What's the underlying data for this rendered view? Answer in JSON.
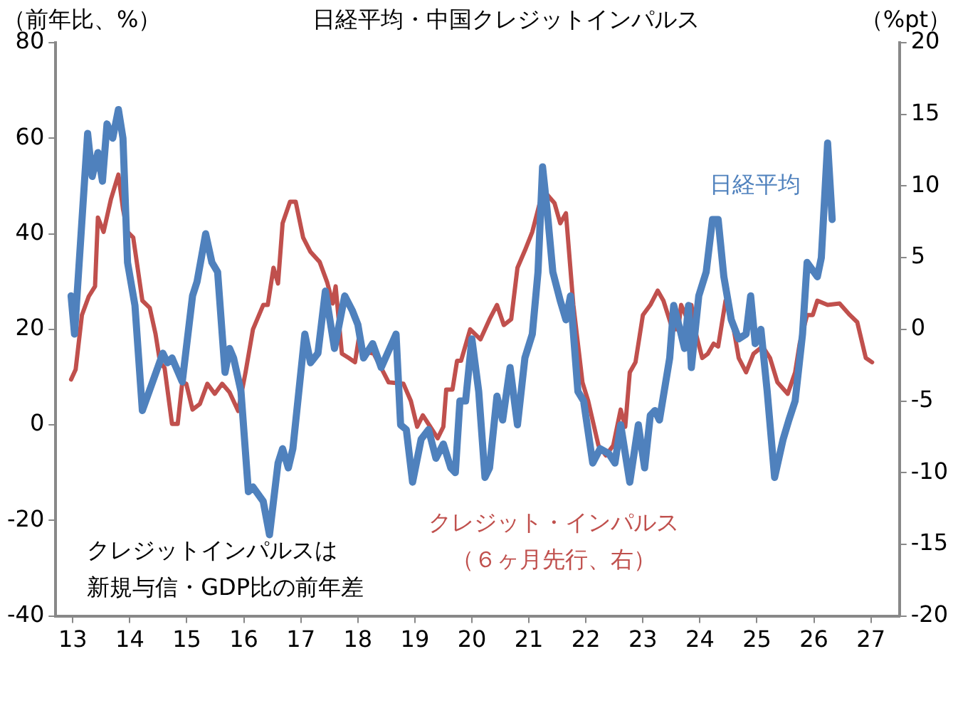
{
  "chart_data": {
    "type": "line",
    "title": "日経平均・中国クレジットインパルス",
    "ylabel": "（前年比、%）",
    "y2label": "（%pt）",
    "annotations": [
      "クレジットインパルスは",
      "新規与信・GDP比の前年差"
    ],
    "xlim": [
      2012.7,
      2027.5
    ],
    "xticks": [
      {
        "value": 2013,
        "label": "13"
      },
      {
        "value": 2014,
        "label": "14"
      },
      {
        "value": 2015,
        "label": "15"
      },
      {
        "value": 2016,
        "label": "16"
      },
      {
        "value": 2017,
        "label": "17"
      },
      {
        "value": 2018,
        "label": "18"
      },
      {
        "value": 2019,
        "label": "19"
      },
      {
        "value": 2020,
        "label": "20"
      },
      {
        "value": 2021,
        "label": "21"
      },
      {
        "value": 2022,
        "label": "22"
      },
      {
        "value": 2023,
        "label": "23"
      },
      {
        "value": 2024,
        "label": "24"
      },
      {
        "value": 2025,
        "label": "25"
      },
      {
        "value": 2026,
        "label": "26"
      },
      {
        "value": 2027,
        "label": "27"
      }
    ],
    "ylim": [
      -40,
      80
    ],
    "yticks": [
      -40,
      -20,
      0,
      20,
      40,
      60,
      80
    ],
    "y2lim": [
      -20,
      20
    ],
    "y2ticks": [
      -20,
      -15,
      -10,
      -5,
      0,
      5,
      10,
      15,
      20
    ],
    "grid": false,
    "legend": false,
    "marker": "none",
    "line_style": "solid",
    "series": [
      {
        "name": "日経平均",
        "color": "#4f81bd",
        "axis": "y",
        "x": [
          2012.97,
          2013.03,
          2013.26,
          2013.34,
          2013.44,
          2013.52,
          2013.6,
          2013.7,
          2013.8,
          2013.88,
          2013.96,
          2014.09,
          2014.22,
          2014.4,
          2014.58,
          2014.66,
          2014.74,
          2014.92,
          2015.1,
          2015.18,
          2015.33,
          2015.44,
          2015.54,
          2015.67,
          2015.75,
          2015.82,
          2015.95,
          2016.08,
          2016.16,
          2016.34,
          2016.45,
          2016.6,
          2016.68,
          2016.78,
          2016.86,
          2017.07,
          2017.17,
          2017.3,
          2017.43,
          2017.59,
          2017.77,
          2017.9,
          2018.0,
          2018.1,
          2018.26,
          2018.41,
          2018.67,
          2018.75,
          2018.85,
          2018.96,
          2019.11,
          2019.24,
          2019.37,
          2019.5,
          2019.63,
          2019.71,
          2019.79,
          2019.89,
          2020.0,
          2020.12,
          2020.23,
          2020.31,
          2020.44,
          2020.54,
          2020.67,
          2020.8,
          2020.93,
          2021.06,
          2021.16,
          2021.24,
          2021.32,
          2021.42,
          2021.55,
          2021.65,
          2021.73,
          2021.86,
          2021.96,
          2022.12,
          2022.25,
          2022.4,
          2022.51,
          2022.61,
          2022.77,
          2022.92,
          2023.03,
          2023.13,
          2023.21,
          2023.29,
          2023.47,
          2023.54,
          2023.65,
          2023.73,
          2023.8,
          2023.85,
          2023.98,
          2024.11,
          2024.22,
          2024.32,
          2024.42,
          2024.55,
          2024.68,
          2024.81,
          2024.89,
          2024.97,
          2025.07,
          2025.18,
          2025.31,
          2025.46,
          2025.56,
          2025.67,
          2025.8,
          2025.88,
          2026.06,
          2026.13,
          2026.24,
          2026.32
        ],
        "values": [
          27,
          19,
          61,
          52,
          57,
          51,
          63,
          60,
          66,
          60,
          34,
          25,
          3,
          9,
          15,
          13,
          14,
          9,
          27,
          30,
          40,
          34,
          32,
          11,
          16,
          14,
          7,
          -14,
          -13,
          -16,
          -23,
          -8,
          -5,
          -9,
          -5,
          19,
          13,
          15,
          28,
          16,
          27,
          24,
          21,
          14,
          17,
          12,
          19,
          0,
          -1,
          -12,
          -3,
          -1,
          -7,
          -4,
          -9,
          -10,
          5,
          5,
          18,
          7,
          -11,
          -9,
          6,
          1,
          12,
          0,
          14,
          19,
          32,
          54,
          45,
          32,
          26,
          22,
          27,
          7,
          5,
          -8,
          -5,
          -6,
          -8,
          0,
          -12,
          0,
          -9,
          2,
          3,
          1,
          14,
          25,
          20,
          16,
          25,
          12,
          27,
          32,
          43,
          43,
          31,
          22,
          18,
          19,
          27,
          17,
          20,
          7,
          -11,
          -3,
          1,
          5,
          19,
          34,
          31,
          35,
          59,
          43
        ]
      },
      {
        "name": "クレジット・インパルス（６ヶ月先行、右）",
        "color": "#c0504d",
        "axis": "y2",
        "x": [
          2012.97,
          2013.05,
          2013.16,
          2013.28,
          2013.39,
          2013.44,
          2013.54,
          2013.67,
          2013.8,
          2013.88,
          2013.96,
          2014.06,
          2014.22,
          2014.35,
          2014.45,
          2014.53,
          2014.61,
          2014.74,
          2014.84,
          2014.92,
          2014.99,
          2015.1,
          2015.23,
          2015.36,
          2015.49,
          2015.62,
          2015.75,
          2015.9,
          2016.03,
          2016.16,
          2016.34,
          2016.42,
          2016.52,
          2016.6,
          2016.68,
          2016.81,
          2016.91,
          2017.04,
          2017.17,
          2017.33,
          2017.46,
          2017.56,
          2017.61,
          2017.72,
          2017.84,
          2017.95,
          2018.03,
          2018.1,
          2018.28,
          2018.41,
          2018.54,
          2018.8,
          2018.93,
          2019.04,
          2019.14,
          2019.27,
          2019.4,
          2019.5,
          2019.55,
          2019.66,
          2019.74,
          2019.81,
          2019.97,
          2020.15,
          2020.31,
          2020.44,
          2020.56,
          2020.69,
          2020.8,
          2020.93,
          2021.06,
          2021.19,
          2021.32,
          2021.45,
          2021.55,
          2021.65,
          2021.78,
          2021.94,
          2022.04,
          2022.22,
          2022.35,
          2022.48,
          2022.61,
          2022.69,
          2022.77,
          2022.87,
          2023.0,
          2023.13,
          2023.26,
          2023.36,
          2023.52,
          2023.62,
          2023.67,
          2023.78,
          2023.85,
          2023.93,
          2024.04,
          2024.14,
          2024.24,
          2024.32,
          2024.45,
          2024.55,
          2024.68,
          2024.81,
          2024.94,
          2025.1,
          2025.23,
          2025.36,
          2025.54,
          2025.67,
          2025.75,
          2025.88,
          2025.98,
          2026.06,
          2026.24,
          2026.45,
          2026.63,
          2026.76,
          2026.91,
          2027.02
        ],
        "values": [
          -3.5,
          -2.8,
          1,
          2.3,
          3,
          7.8,
          6.8,
          9.1,
          10.8,
          8.4,
          6.8,
          6.4,
          2,
          1.5,
          -0.3,
          -2.3,
          -2.7,
          -6.6,
          -6.6,
          -3.7,
          -3.8,
          -5.6,
          -5.2,
          -3.8,
          -4.5,
          -3.8,
          -4.4,
          -5.7,
          -3,
          0,
          1.7,
          1.7,
          4.3,
          3.2,
          7.4,
          8.9,
          8.9,
          6.4,
          5.4,
          4.7,
          3.3,
          1.8,
          3,
          -1.7,
          -2,
          -2.3,
          -0.3,
          -1.5,
          -1.7,
          -2.7,
          -3.7,
          -3.8,
          -5,
          -6.8,
          -6,
          -6.8,
          -7.6,
          -6.8,
          -4.2,
          -4.2,
          -2.2,
          -2.2,
          0,
          -0.7,
          0.7,
          1.7,
          0.3,
          0.7,
          4.3,
          5.5,
          6.8,
          8.8,
          9.4,
          8.8,
          7.4,
          8.1,
          1.7,
          -3.7,
          -5,
          -8.1,
          -8.8,
          -8.1,
          -5.6,
          -6.8,
          -3,
          -2.3,
          1,
          1.7,
          2.7,
          2,
          0,
          0,
          1.7,
          0.7,
          1.7,
          -0.3,
          -2,
          -1.7,
          -1,
          -1.2,
          2,
          1,
          -2,
          -3,
          -1.7,
          -1.2,
          -2,
          -3.7,
          -4.5,
          -3,
          -1,
          1,
          1,
          2,
          1.7,
          1.8,
          1,
          0.5,
          -2,
          -2.3
        ]
      }
    ]
  }
}
